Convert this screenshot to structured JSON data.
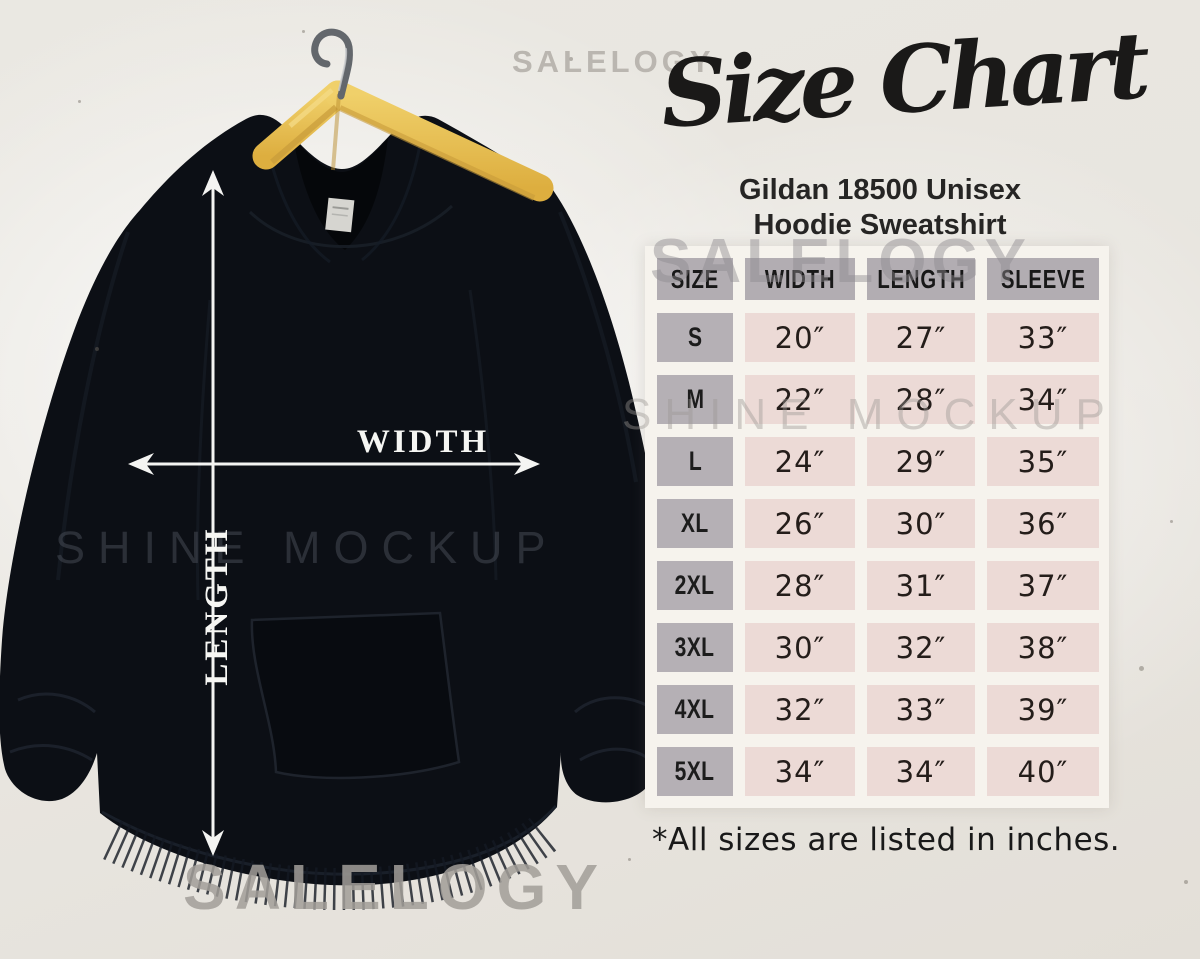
{
  "header": {
    "title": "Size Chart",
    "subtitle_line1": "Gildan 18500 Unisex",
    "subtitle_line2": "Hoodie Sweatshirt"
  },
  "diagram": {
    "width_label": "WIDTH",
    "length_label": "LENGTH"
  },
  "watermarks": {
    "brand": "SALELOGY",
    "mockup": "SHINE MOCKUP"
  },
  "footnote": "*All sizes are listed in inches.",
  "colors": {
    "page_bg": "#e9e6e0",
    "table_backdrop": "#f6f3ed",
    "header_cell": "#b2adb2",
    "size_cell": "#b5b0b5",
    "value_cell": "#ecdad6",
    "hoodie_black": "#0c0f15",
    "hanger_wood": "#e8c253",
    "arrow_white": "#f4f4f2",
    "title_ink": "#1a1918",
    "watermark_gray": "#a8a49f"
  },
  "chart_data": {
    "type": "table",
    "title": "Size Chart",
    "subtitle": "Gildan 18500 Unisex Hoodie Sweatshirt",
    "columns": [
      "SIZE",
      "WIDTH",
      "LENGTH",
      "SLEEVE"
    ],
    "rows": [
      [
        "S",
        "20″",
        "27″",
        "33″"
      ],
      [
        "M",
        "22″",
        "28″",
        "34″"
      ],
      [
        "L",
        "24″",
        "29″",
        "35″"
      ],
      [
        "XL",
        "26″",
        "30″",
        "36″"
      ],
      [
        "2XL",
        "28″",
        "31″",
        "37″"
      ],
      [
        "3XL",
        "30″",
        "32″",
        "38″"
      ],
      [
        "4XL",
        "32″",
        "33″",
        "39″"
      ],
      [
        "5XL",
        "34″",
        "34″",
        "40″"
      ]
    ],
    "footnote": "*All sizes are listed in inches.",
    "units": "inches"
  }
}
